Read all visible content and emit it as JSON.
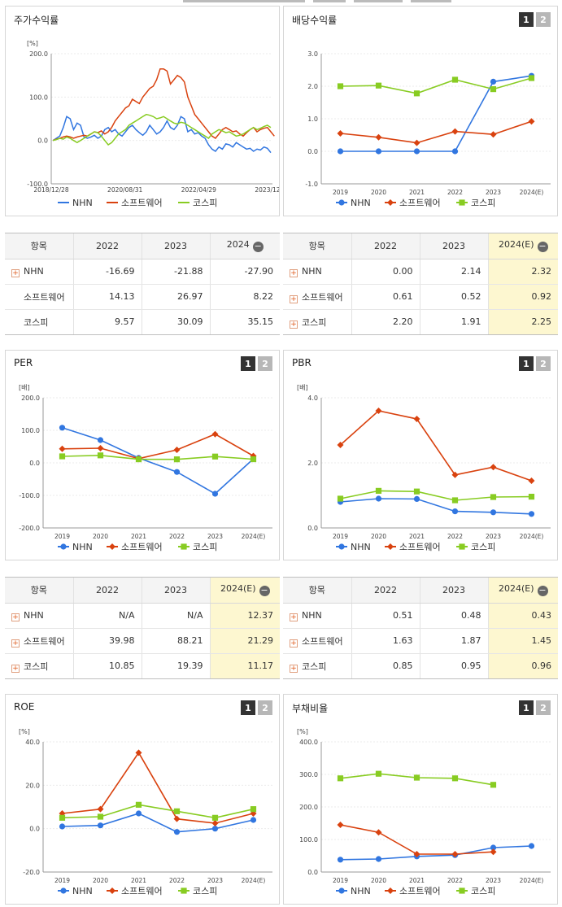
{
  "colors": {
    "nhn": "#3176e0",
    "software": "#d9420f",
    "kospi": "#88cc22"
  },
  "legend": [
    "NHN",
    "소프트웨어",
    "코스피"
  ],
  "panels": {
    "stock": {
      "title": "주가수익률",
      "unit": "[%]"
    },
    "dividend": {
      "title": "배당수익률",
      "unit": "",
      "page1": "1",
      "page2": "2"
    },
    "per": {
      "title": "PER",
      "unit": "[배]",
      "page1": "1",
      "page2": "2"
    },
    "pbr": {
      "title": "PBR",
      "unit": "[배]",
      "page1": "1",
      "page2": "2"
    },
    "roe": {
      "title": "ROE",
      "unit": "[%]",
      "page1": "1",
      "page2": "2"
    },
    "debt": {
      "title": "부채비율",
      "unit": "[%]",
      "page1": "1",
      "page2": "2"
    }
  },
  "tables": {
    "stock": {
      "headers": [
        "항목",
        "2022",
        "2023",
        "2024"
      ],
      "rows": [
        {
          "name": "NHN",
          "values": [
            "-16.69",
            "-21.88",
            "-27.90"
          ]
        },
        {
          "name": "소프트웨어",
          "values": [
            "14.13",
            "26.97",
            "8.22"
          ]
        },
        {
          "name": "코스피",
          "values": [
            "9.57",
            "30.09",
            "35.15"
          ]
        }
      ]
    },
    "dividend": {
      "headers": [
        "항목",
        "2022",
        "2023",
        "2024(E)"
      ],
      "rows": [
        {
          "name": "NHN",
          "values": [
            "0.00",
            "2.14",
            "2.32"
          ]
        },
        {
          "name": "소프트웨어",
          "values": [
            "0.61",
            "0.52",
            "0.92"
          ]
        },
        {
          "name": "코스피",
          "values": [
            "2.20",
            "1.91",
            "2.25"
          ]
        }
      ]
    },
    "per": {
      "headers": [
        "항목",
        "2022",
        "2023",
        "2024(E)"
      ],
      "rows": [
        {
          "name": "NHN",
          "values": [
            "N/A",
            "N/A",
            "12.37"
          ]
        },
        {
          "name": "소프트웨어",
          "values": [
            "39.98",
            "88.21",
            "21.29"
          ]
        },
        {
          "name": "코스피",
          "values": [
            "10.85",
            "19.39",
            "11.17"
          ]
        }
      ]
    },
    "pbr": {
      "headers": [
        "항목",
        "2022",
        "2023",
        "2024(E)"
      ],
      "rows": [
        {
          "name": "NHN",
          "values": [
            "0.51",
            "0.48",
            "0.43"
          ]
        },
        {
          "name": "소프트웨어",
          "values": [
            "1.63",
            "1.87",
            "1.45"
          ]
        },
        {
          "name": "코스피",
          "values": [
            "0.85",
            "0.95",
            "0.96"
          ]
        }
      ]
    }
  },
  "chart_data": [
    {
      "id": "stock",
      "type": "line",
      "title": "주가수익률",
      "ylabel": "[%]",
      "ylim": [
        -100,
        200
      ],
      "yticks": [
        "200.0",
        "100.0",
        "0.0",
        "-100.0"
      ],
      "xticks": [
        "2018/12/28",
        "2020/08/31",
        "2022/04/29",
        "2023/12/28"
      ],
      "series": [
        {
          "name": "NHN",
          "values": [
            0,
            5,
            10,
            30,
            55,
            50,
            25,
            40,
            35,
            8,
            5,
            8,
            12,
            5,
            10,
            25,
            30,
            20,
            25,
            15,
            10,
            20,
            30,
            35,
            25,
            18,
            12,
            20,
            35,
            25,
            15,
            20,
            30,
            45,
            30,
            25,
            35,
            55,
            50,
            20,
            25,
            15,
            18,
            10,
            5,
            -10,
            -20,
            -25,
            -15,
            -20,
            -8,
            -10,
            -15,
            -5,
            -10,
            -15,
            -20,
            -18,
            -25,
            -20,
            -22,
            -15,
            -18,
            -28
          ]
        },
        {
          "name": "소프트웨어",
          "values": [
            0,
            3,
            5,
            8,
            10,
            8,
            5,
            8,
            10,
            12,
            10,
            15,
            20,
            18,
            22,
            15,
            20,
            30,
            45,
            55,
            65,
            75,
            80,
            95,
            90,
            85,
            100,
            110,
            120,
            125,
            140,
            165,
            165,
            160,
            130,
            140,
            150,
            145,
            135,
            100,
            80,
            60,
            50,
            40,
            30,
            20,
            10,
            5,
            15,
            25,
            30,
            25,
            20,
            22,
            15,
            10,
            18,
            25,
            30,
            20,
            25,
            28,
            30,
            20,
            10
          ]
        },
        {
          "name": "코스피",
          "values": [
            0,
            2,
            5,
            3,
            8,
            5,
            0,
            -5,
            0,
            5,
            10,
            15,
            20,
            18,
            10,
            0,
            -10,
            -5,
            5,
            15,
            20,
            25,
            35,
            40,
            45,
            50,
            55,
            60,
            58,
            55,
            50,
            52,
            55,
            50,
            45,
            40,
            38,
            42,
            40,
            35,
            30,
            25,
            20,
            15,
            10,
            5,
            15,
            20,
            25,
            22,
            18,
            20,
            15,
            10,
            12,
            15,
            20,
            25,
            30,
            25,
            28,
            32,
            35,
            30
          ]
        }
      ]
    },
    {
      "id": "dividend",
      "type": "line",
      "title": "배당수익률",
      "ylim": [
        -1,
        3
      ],
      "yticks": [
        "3.0",
        "2.0",
        "1.0",
        "0.0",
        "-1.0"
      ],
      "categories": [
        "2019",
        "2020",
        "2021",
        "2022",
        "2023",
        "2024(E)"
      ],
      "series": [
        {
          "name": "NHN",
          "values": [
            0.0,
            0.0,
            0.0,
            0.0,
            2.14,
            2.32
          ]
        },
        {
          "name": "소프트웨어",
          "values": [
            0.55,
            0.43,
            0.26,
            0.61,
            0.52,
            0.92
          ]
        },
        {
          "name": "코스피",
          "values": [
            2.0,
            2.02,
            1.78,
            2.2,
            1.91,
            2.25
          ]
        }
      ]
    },
    {
      "id": "per",
      "type": "line",
      "title": "PER",
      "ylabel": "[배]",
      "ylim": [
        -200,
        200
      ],
      "yticks": [
        "200.0",
        "100.0",
        "0.0",
        "-100.0",
        "-200.0"
      ],
      "categories": [
        "2019",
        "2020",
        "2021",
        "2022",
        "2023",
        "2024(E)"
      ],
      "series": [
        {
          "name": "NHN",
          "values": [
            108,
            70,
            15,
            -28,
            -95,
            12.37
          ]
        },
        {
          "name": "소프트웨어",
          "values": [
            43,
            45,
            13,
            39.98,
            88.21,
            21.29
          ]
        },
        {
          "name": "코스피",
          "values": [
            20,
            23,
            11,
            10.85,
            19.39,
            11.17
          ]
        }
      ]
    },
    {
      "id": "pbr",
      "type": "line",
      "title": "PBR",
      "ylabel": "[배]",
      "ylim": [
        0,
        4
      ],
      "yticks": [
        "4.0",
        "2.0",
        "0.0"
      ],
      "categories": [
        "2019",
        "2020",
        "2021",
        "2022",
        "2023",
        "2024(E)"
      ],
      "series": [
        {
          "name": "NHN",
          "values": [
            0.8,
            0.9,
            0.89,
            0.51,
            0.48,
            0.43
          ]
        },
        {
          "name": "소프트웨어",
          "values": [
            2.55,
            3.6,
            3.35,
            1.63,
            1.87,
            1.45
          ]
        },
        {
          "name": "코스피",
          "values": [
            0.9,
            1.14,
            1.12,
            0.85,
            0.95,
            0.96
          ]
        }
      ]
    },
    {
      "id": "roe",
      "type": "line",
      "title": "ROE",
      "ylabel": "[%]",
      "ylim": [
        -20,
        40
      ],
      "yticks": [
        "40.0",
        "20.0",
        "0.0",
        "-20.0"
      ],
      "categories": [
        "2019",
        "2020",
        "2021",
        "2022",
        "2023",
        "2024(E)"
      ],
      "series": [
        {
          "name": "NHN",
          "values": [
            1,
            1.5,
            7,
            -1.5,
            0,
            4
          ]
        },
        {
          "name": "소프트웨어",
          "values": [
            7,
            9,
            35,
            4.5,
            2.5,
            7
          ]
        },
        {
          "name": "코스피",
          "values": [
            5,
            5.5,
            11,
            8,
            5,
            9
          ]
        }
      ]
    },
    {
      "id": "debt",
      "type": "line",
      "title": "부채비율",
      "ylabel": "[%]",
      "ylim": [
        0,
        400
      ],
      "yticks": [
        "400.0",
        "300.0",
        "200.0",
        "100.0",
        "0.0"
      ],
      "categories": [
        "2019",
        "2020",
        "2021",
        "2022",
        "2023",
        "2024(E)"
      ],
      "series": [
        {
          "name": "NHN",
          "values": [
            38,
            40,
            48,
            52,
            75,
            80
          ]
        },
        {
          "name": "소프트웨어",
          "values": [
            145,
            122,
            55,
            55,
            62,
            null
          ]
        },
        {
          "name": "코스피",
          "values": [
            288,
            302,
            290,
            288,
            268,
            null
          ]
        }
      ]
    }
  ]
}
